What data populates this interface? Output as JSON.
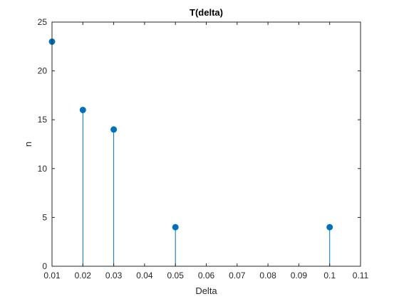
{
  "chart_data": {
    "type": "stem",
    "title": "T(delta)",
    "xlabel": "Delta",
    "ylabel": "n",
    "xlim": [
      0.01,
      0.11
    ],
    "ylim": [
      0,
      25
    ],
    "x_ticks": [
      "0.01",
      "0.02",
      "0.03",
      "0.04",
      "0.05",
      "0.06",
      "0.07",
      "0.08",
      "0.09",
      "0.1",
      "0.11"
    ],
    "y_ticks": [
      "0",
      "5",
      "10",
      "15",
      "20",
      "25"
    ],
    "grid": false,
    "x": [
      0.01,
      0.02,
      0.03,
      0.05,
      0.1
    ],
    "y": [
      23,
      16,
      14,
      4,
      4
    ],
    "colors": {
      "series": "#0072bd",
      "axis": "#262626"
    }
  }
}
